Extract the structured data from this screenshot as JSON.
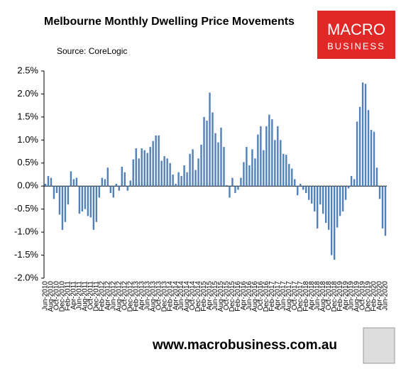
{
  "chart_data": {
    "type": "bar",
    "title": "Melbourne Monthly Dwelling Price Movements",
    "source": "Source: CoreLogic",
    "brand": [
      "MACRO",
      "BUSINESS"
    ],
    "footer": "www.macrobusiness.com.au",
    "color": "#4f81bd",
    "ylim": [
      -2,
      2.5
    ],
    "yticks": [
      {
        "value": 2.5,
        "label": "2.5%"
      },
      {
        "value": 2,
        "label": "2.0%"
      },
      {
        "value": 1.5,
        "label": "1.5%"
      },
      {
        "value": 1,
        "label": "1.0%"
      },
      {
        "value": 0.5,
        "label": "0.5%"
      },
      {
        "value": 0,
        "label": "0.0%"
      },
      {
        "value": -0.5,
        "label": "-0.5%"
      },
      {
        "value": -1,
        "label": "-1.0%"
      },
      {
        "value": -1.5,
        "label": "-1.5%"
      },
      {
        "value": -2,
        "label": "-2.0%"
      }
    ],
    "categories": [
      "Jun-2010",
      null,
      "Aug-2010",
      null,
      "Oct-2010",
      null,
      "Dec-2010",
      null,
      "Feb-2011",
      null,
      "Apr-2011",
      null,
      "Jun-2011",
      null,
      "Aug-2011",
      null,
      "Oct-2011",
      null,
      "Dec-2011",
      null,
      "Feb-2012",
      null,
      "Apr-2012",
      null,
      "Jun-2012",
      null,
      "Aug-2012",
      null,
      "Oct-2012",
      null,
      "Dec-2012",
      null,
      "Feb-2013",
      null,
      "Apr-2013",
      null,
      "Jun-2013",
      null,
      "Aug-2013",
      null,
      "Oct-2013",
      null,
      "Dec-2013",
      null,
      "Feb-2014",
      null,
      "Apr-2014",
      null,
      "Jun-2014",
      null,
      "Aug-2014",
      null,
      "Oct-2014",
      null,
      "Dec-2014",
      null,
      "Feb-2015",
      null,
      "Apr-2015",
      null,
      "Jun-2015",
      null,
      "Aug-2015",
      null,
      "Oct-2015",
      null,
      "Dec-2015",
      null,
      "Feb-2016",
      null,
      "Apr-2016",
      null,
      "Jun-2016",
      null,
      "Aug-2016",
      null,
      "Oct-2016",
      null,
      "Dec-2016",
      null,
      "Feb-2017",
      null,
      "Apr-2017",
      null,
      "Jun-2017",
      null,
      "Aug-2017",
      null,
      "Oct-2017",
      null,
      "Dec-2017",
      null,
      "Feb-2018",
      null,
      "Apr-2018",
      null,
      "Jun-2018",
      null,
      "Aug-2018",
      null,
      "Oct-2018",
      null,
      "Dec-2018",
      null,
      "Feb-2019",
      null,
      "Apr-2019",
      null,
      "Jun-2019",
      null,
      "Aug-2019",
      null,
      "Oct-2019",
      null,
      "Dec-2019",
      null,
      "Feb-2020",
      null,
      "Apr-2020",
      null,
      "Jun-2020"
    ],
    "values": [
      0.05,
      0.22,
      0.18,
      -0.28,
      -0.15,
      -0.62,
      -0.95,
      -0.78,
      -0.4,
      0.32,
      0.15,
      0.18,
      -0.6,
      -0.55,
      -0.5,
      -0.65,
      -0.68,
      -0.95,
      -0.78,
      -0.25,
      0.18,
      0.15,
      0.4,
      -0.15,
      -0.25,
      0.05,
      -0.1,
      0.42,
      0.3,
      -0.1,
      0.12,
      0.58,
      0.82,
      0.6,
      0.82,
      0.78,
      0.72,
      0.85,
      0.98,
      1.1,
      1.1,
      0.55,
      0.65,
      0.6,
      0.5,
      0.25,
      0.05,
      0.3,
      0.22,
      0.45,
      0.3,
      0.7,
      0.8,
      0.35,
      0.6,
      0.9,
      1.5,
      1.42,
      2.03,
      1.6,
      1.15,
      0.95,
      1.27,
      0.85,
      0.02,
      -0.25,
      0.18,
      -0.15,
      -0.08,
      0.18,
      0.52,
      0.85,
      0.45,
      0.8,
      0.6,
      1.12,
      1.3,
      0.78,
      1.3,
      1.55,
      1.45,
      1.0,
      1.3,
      1.0,
      0.7,
      0.68,
      0.48,
      0.38,
      0.15,
      -0.2,
      0.05,
      -0.08,
      -0.15,
      -0.3,
      -0.38,
      -0.55,
      -0.92,
      -0.4,
      -0.6,
      -0.8,
      -0.95,
      -1.5,
      -1.6,
      -0.9,
      -0.65,
      -0.55,
      -0.3,
      -0.05,
      0.22,
      0.15,
      1.4,
      1.72,
      2.25,
      2.22,
      1.65,
      1.22,
      1.18,
      0.4,
      -0.28,
      -0.92,
      -1.08
    ]
  }
}
